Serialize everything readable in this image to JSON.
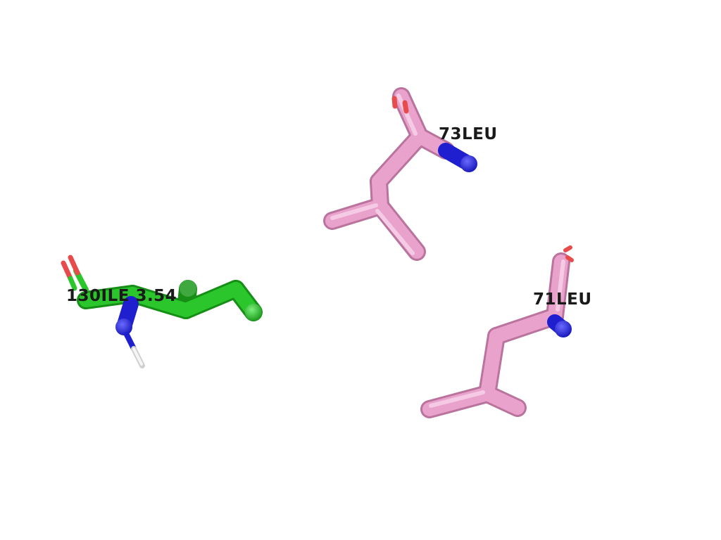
{
  "scene": {
    "background": "#ffffff",
    "colors": {
      "ligand_carbon": "#2bc62b",
      "residue_carbon": "#e8a2cc",
      "nitrogen": "#2323e0",
      "oxygen": "#e84b4b",
      "hydrogen": "#eeeeee"
    }
  },
  "labels": {
    "res73": "73LEU",
    "res71": "71LEU",
    "res130": "130ILE 3.54"
  }
}
